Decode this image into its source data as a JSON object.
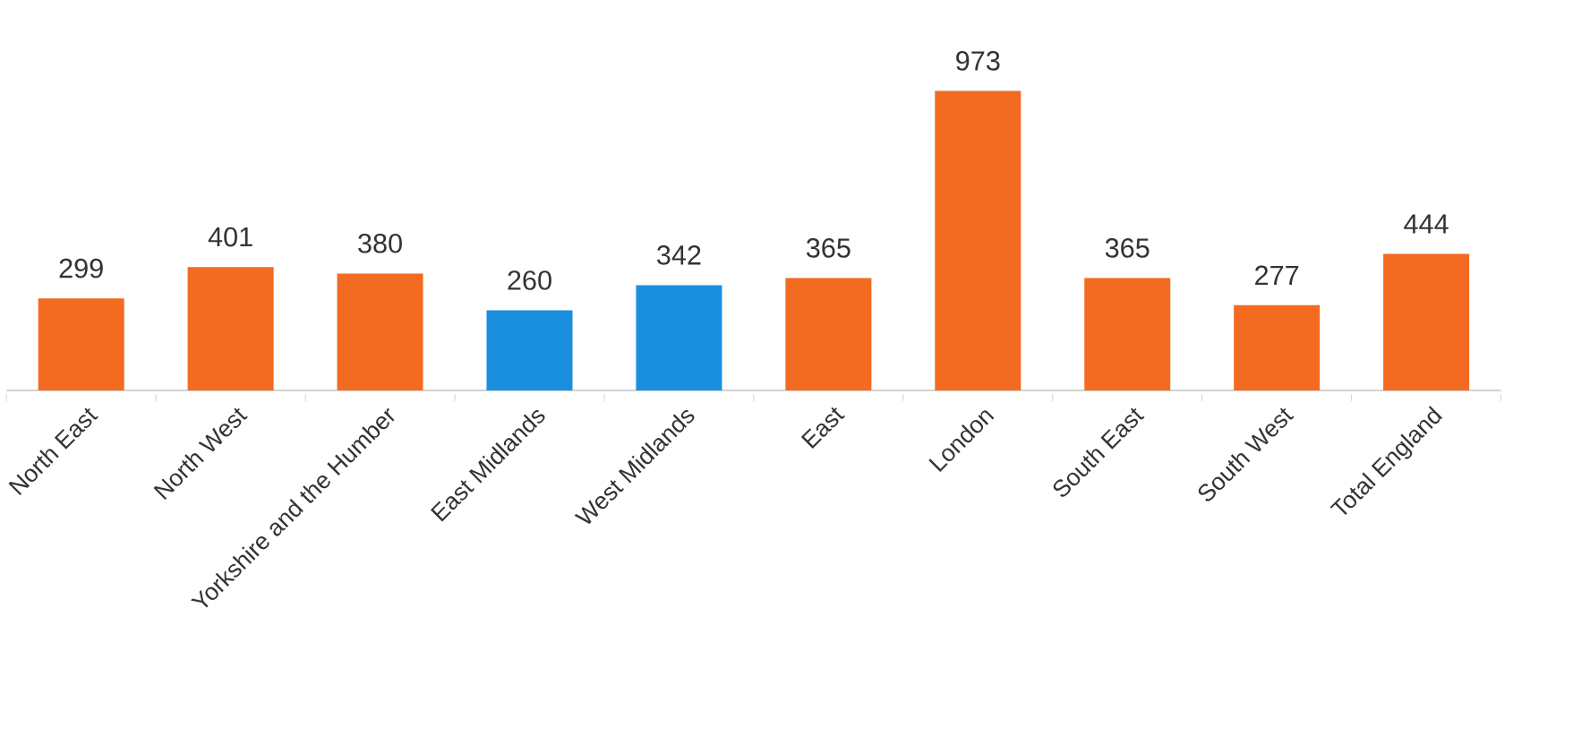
{
  "chart_data": {
    "type": "bar",
    "categories": [
      "North East",
      "North West",
      "Yorkshire and the Humber",
      "East Midlands",
      "West Midlands",
      "East",
      "London",
      "South East",
      "South West",
      "Total England"
    ],
    "values": [
      299,
      401,
      380,
      260,
      342,
      365,
      973,
      365,
      277,
      444
    ],
    "colors": [
      "#f26b21",
      "#f26b21",
      "#f26b21",
      "#1a8fde",
      "#1a8fde",
      "#f26b21",
      "#f26b21",
      "#f26b21",
      "#f26b21",
      "#f26b21"
    ],
    "data_labels": true
  }
}
